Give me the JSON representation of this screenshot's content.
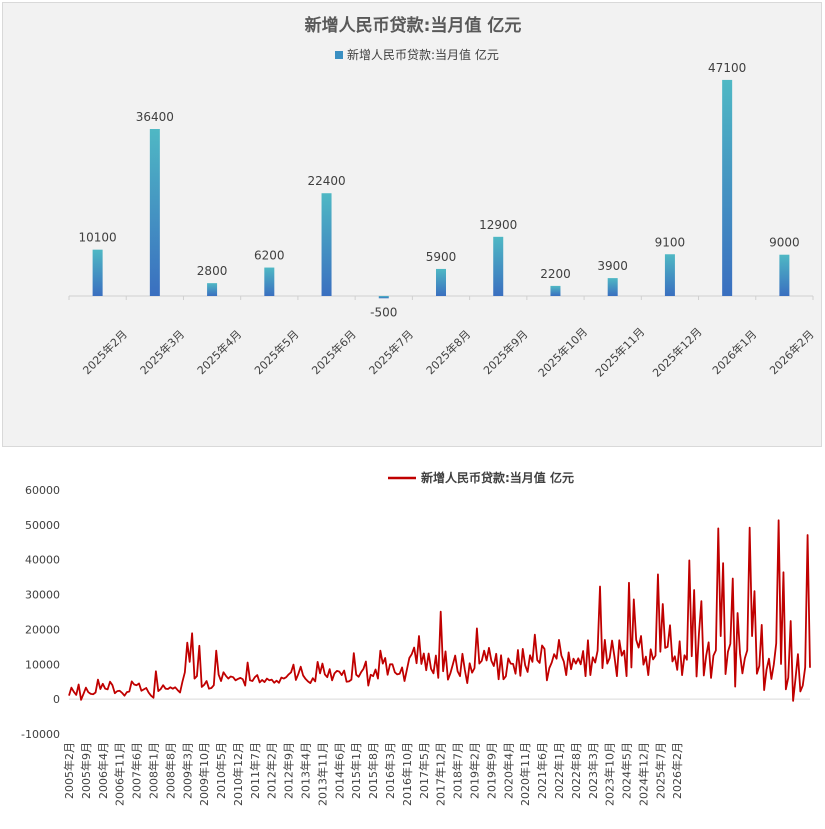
{
  "chart_data": [
    {
      "type": "bar",
      "title": "新增人民币贷款:当月值 亿元",
      "legend": "新增人民币贷款:当月值 亿元",
      "legend_position": "top",
      "categories": [
        "2025年2月",
        "2025年3月",
        "2025年4月",
        "2025年5月",
        "2025年6月",
        "2025年7月",
        "2025年8月",
        "2025年9月",
        "2025年10月",
        "2025年11月",
        "2025年12月",
        "2026年1月",
        "2026年2月"
      ],
      "series": [
        {
          "name": "新增人民币贷款:当月值 亿元",
          "values": [
            10100,
            36400,
            2800,
            6200,
            22400,
            -500,
            5900,
            12900,
            2200,
            3900,
            9100,
            47100,
            9000
          ]
        }
      ],
      "value_labels": [
        "10100",
        "36400",
        "2800",
        "6200",
        "22400",
        "-500",
        "5900",
        "12900",
        "2200",
        "3900",
        "9100",
        "47100",
        "9000"
      ],
      "ylim": [
        -3000,
        50000
      ],
      "grid": false,
      "colors": {
        "bar_top": "#4fb8c4",
        "bar_bottom": "#3a6fc0",
        "title": "#595959",
        "background": "#f2f2f2"
      }
    },
    {
      "type": "line",
      "title": "",
      "legend": "新增人民币贷款:当月值 亿元",
      "legend_position": "top",
      "ylim": [
        -10000,
        60000
      ],
      "yticks": [
        -10000,
        0,
        10000,
        20000,
        30000,
        40000,
        50000,
        60000
      ],
      "ytick_labels": [
        "-10000",
        "0",
        "10000",
        "20000",
        "30000",
        "40000",
        "50000",
        "60000"
      ],
      "xtick_labels": [
        "2005年2月",
        "2005年9月",
        "2006年4月",
        "2006年11月",
        "2007年6月",
        "2008年1月",
        "2008年8月",
        "2009年3月",
        "2009年10月",
        "2010年5月",
        "2010年12月",
        "2011年7月",
        "2012年2月",
        "2012年9月",
        "2013年4月",
        "2013年11月",
        "2014年6月",
        "2015年1月",
        "2015年8月",
        "2016年3月",
        "2016年10月",
        "2017年5月",
        "2017年12月",
        "2018年7月",
        "2019年2月",
        "2019年9月",
        "2020年4月",
        "2020年11月",
        "2021年6月",
        "2022年1月",
        "2022年8月",
        "2023年3月",
        "2023年10月",
        "2024年5月",
        "2024年12月",
        "2025年7月",
        "2026年2月"
      ],
      "xtick_step_months": 7,
      "grid": false,
      "series": [
        {
          "name": "新增人民币贷款:当月值 亿元",
          "start": "2005年2月",
          "frequency": "monthly",
          "values": [
            1000,
            3300,
            2100,
            1200,
            4200,
            -200,
            1500,
            3300,
            2000,
            1500,
            1400,
            1900,
            5600,
            2900,
            4400,
            3000,
            2800,
            5000,
            4000,
            1700,
            2300,
            2400,
            1800,
            1000,
            2000,
            2200,
            5100,
            4200,
            4000,
            4500,
            2400,
            2800,
            3200,
            1900,
            1000,
            400,
            8000,
            2300,
            2900,
            4000,
            3000,
            2900,
            3400,
            3000,
            3400,
            2600,
            1900,
            5000,
            7700,
            16200,
            10700,
            18900,
            5900,
            6600,
            15300,
            3500,
            4100,
            5200,
            3000,
            3200,
            4000,
            13900,
            7000,
            5200,
            7700,
            6700,
            5900,
            6500,
            6300,
            5400,
            5800,
            6100,
            5700,
            3900,
            10500,
            5400,
            5200,
            6300,
            6900,
            4800,
            5500,
            4900,
            5900,
            5400,
            5600,
            4700,
            5300,
            4700,
            6200,
            5900,
            6300,
            7100,
            7700,
            9900,
            5500,
            7200,
            9300,
            6800,
            5800,
            5100,
            4600,
            6000,
            5100,
            10700,
            7400,
            10200,
            7100,
            6300,
            8600,
            5400,
            7400,
            8100,
            7900,
            6900,
            8200,
            5000,
            5100,
            5600,
            13200,
            7000,
            6400,
            7700,
            8700,
            10800,
            3900,
            7000,
            6600,
            8500,
            5900,
            13900,
            10200,
            11800,
            7000,
            10000,
            10000,
            7700,
            7100,
            7300,
            9100,
            5200,
            8500,
            11800,
            12900,
            14800,
            10300,
            18100,
            10100,
            13100,
            8300,
            13100,
            8700,
            7400,
            12500,
            6100,
            25100,
            8000,
            13700,
            5600,
            7400,
            9900,
            12500,
            8000,
            6600,
            13000,
            8400,
            4600,
            10300,
            7600,
            8900,
            20300,
            10200,
            11000,
            13900,
            11100,
            14700,
            11000,
            9500,
            13000,
            5700,
            12600,
            5700,
            6600,
            11700,
            10200,
            10100,
            7300,
            14100,
            6700,
            14400,
            9700,
            7800,
            12600,
            10700,
            18500,
            11200,
            10400,
            15400,
            14400,
            5400,
            8900,
            10500,
            12900,
            11600,
            17000,
            12500,
            10800,
            6900,
            13400,
            8600,
            11600,
            10200,
            11700,
            10000,
            13800,
            6600,
            16900,
            6900,
            12000,
            10500,
            13900,
            32300,
            8900,
            17000,
            10200,
            11800,
            16800,
            12100,
            6600,
            16900,
            12500,
            13900,
            6600,
            33400,
            9100,
            28600,
            17000,
            14800,
            18100,
            9900,
            12200,
            6900,
            14300,
            11400,
            12500,
            35800,
            13600,
            27300,
            14700,
            15000,
            21200,
            10800,
            12300,
            8400,
            16600,
            6900,
            12600,
            11300,
            39800,
            12300,
            31300,
            6500,
            18900,
            28100,
            6800,
            12500,
            16300,
            6100,
            12500,
            14000,
            49000,
            18100,
            39000,
            7200,
            13600,
            15900,
            34600,
            3600,
            24700,
            13100,
            7400,
            11700,
            14000,
            49200,
            18100,
            31000,
            7300,
            9500,
            21300,
            2600,
            8500,
            11600,
            5800,
            9900,
            16000,
            51300,
            10100,
            36400,
            2800,
            6200,
            22400,
            -500,
            5900,
            12900,
            2200,
            3900,
            9100,
            47100,
            9000
          ]
        }
      ],
      "colors": {
        "line": "#c00000",
        "axis": "#d9d9d9",
        "text": "#404040"
      }
    }
  ]
}
